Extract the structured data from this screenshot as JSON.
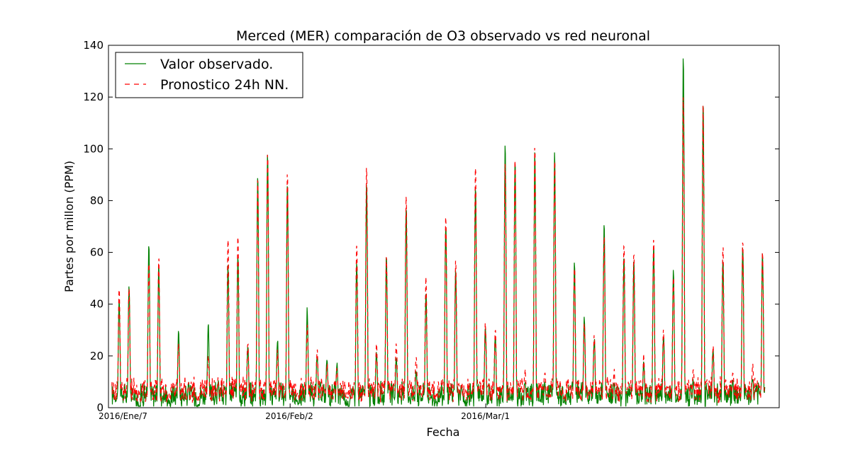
{
  "chart_data": {
    "type": "line",
    "title": "Merced (MER) comparación de O3 observado vs red neuronal",
    "xlabel": "Fecha",
    "ylabel": "Partes por millon (PPM)",
    "ylim": [
      0,
      140
    ],
    "yticks": [
      0,
      20,
      40,
      60,
      80,
      100,
      120,
      140
    ],
    "xlim": [
      0,
      96
    ],
    "x_unit": "days since 2016/Ene/7",
    "xticks": [
      {
        "x": 0,
        "label": "2016/Ene/7"
      },
      {
        "x": 26,
        "label": "2016/Feb/2"
      },
      {
        "x": 54,
        "label": "2016/Mar/1"
      }
    ],
    "grid": false,
    "legend_position": "top-left",
    "series": [
      {
        "name": "Valor observado.",
        "color": "#008000",
        "style": "solid",
        "daily_peaks": [
          42,
          48,
          1,
          63,
          55,
          2,
          29,
          9,
          2,
          32,
          10,
          55,
          60,
          23,
          91,
          99,
          26,
          88,
          3,
          38,
          20,
          19,
          17,
          2,
          58,
          87,
          21,
          60,
          20,
          78,
          15,
          45,
          2,
          71,
          53,
          2,
          86,
          32,
          28,
          102,
          96,
          10,
          99,
          10,
          99,
          3,
          56,
          35,
          27,
          71,
          10,
          59,
          56,
          18,
          63,
          28,
          53,
          136,
          10,
          120,
          22,
          59,
          10,
          63,
          12,
          60
        ]
      },
      {
        "name": "Pronostico 24h NN.",
        "color": "#ff0000",
        "style": "dashed",
        "daily_peaks": [
          47,
          47,
          6,
          56,
          59,
          6,
          25,
          10,
          4,
          20,
          12,
          66,
          67,
          25,
          89,
          98,
          22,
          91,
          5,
          32,
          22,
          17,
          16,
          5,
          65,
          93,
          25,
          60,
          25,
          84,
          20,
          50,
          5,
          74,
          57,
          6,
          94,
          33,
          30,
          97,
          98,
          14,
          103,
          14,
          98,
          5,
          55,
          33,
          28,
          68,
          14,
          64,
          60,
          20,
          67,
          30,
          52,
          121,
          14,
          118,
          24,
          63,
          14,
          65,
          16,
          61
        ]
      }
    ]
  }
}
